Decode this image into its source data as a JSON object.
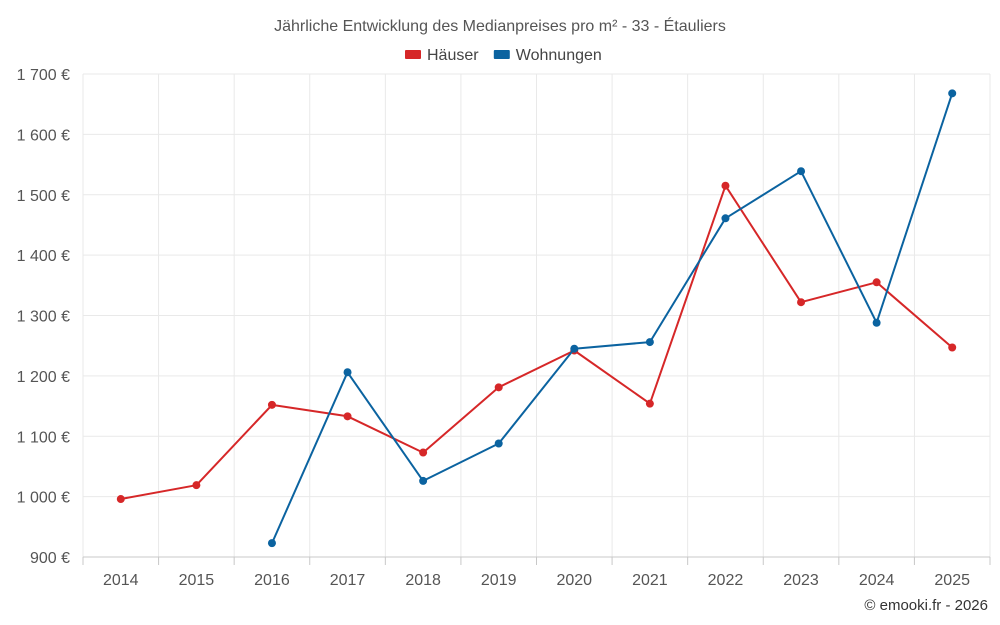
{
  "chart_data": {
    "type": "line",
    "title": "Jährliche Entwicklung des Medianpreises pro m² - 33 - Étauliers",
    "categories": [
      "2014",
      "2015",
      "2016",
      "2017",
      "2018",
      "2019",
      "2020",
      "2021",
      "2022",
      "2023",
      "2024",
      "2025"
    ],
    "series": [
      {
        "name": "Häuser",
        "color": "#d62728",
        "values": [
          996,
          1019,
          1152,
          1133,
          1073,
          1181,
          1242,
          1154,
          1515,
          1322,
          1355,
          1247
        ]
      },
      {
        "name": "Wohnungen",
        "color": "#0b63a0",
        "values": [
          null,
          null,
          923,
          1206,
          1026,
          1088,
          1245,
          1256,
          1461,
          1539,
          1288,
          1668
        ]
      }
    ],
    "ylim": [
      900,
      1700
    ],
    "yticks": [
      900,
      1000,
      1100,
      1200,
      1300,
      1400,
      1500,
      1600,
      1700
    ],
    "ytick_labels": [
      "900 €",
      "1 000 €",
      "1 100 €",
      "1 200 €",
      "1 300 €",
      "1 400 €",
      "1 500 €",
      "1 600 €",
      "1 700 €"
    ],
    "xlabel": "",
    "ylabel": "",
    "legend_position": "top-center",
    "grid": true
  },
  "credit": "© emooki.fr - 2026"
}
